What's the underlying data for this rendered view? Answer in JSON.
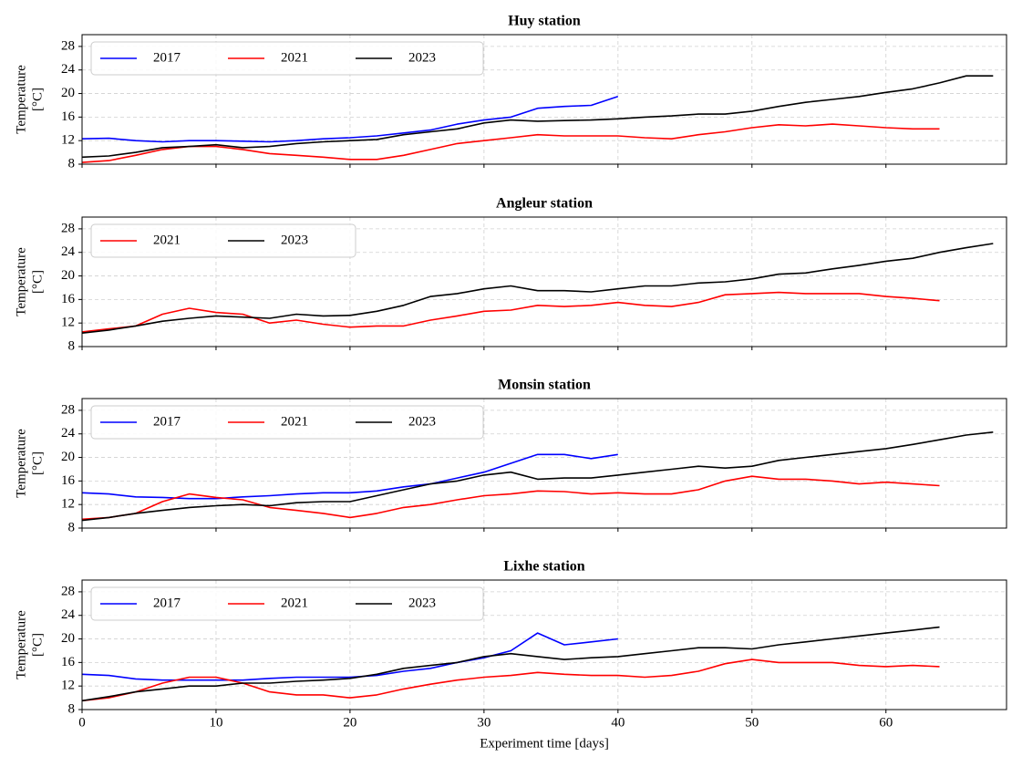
{
  "chart_data": [
    {
      "type": "line",
      "title": "Huy station",
      "ylabel": [
        "Temperature",
        "[°C]"
      ],
      "xlim": [
        0,
        69
      ],
      "ylim": [
        8,
        30
      ],
      "xticks": [
        0,
        10,
        20,
        30,
        40,
        50,
        60
      ],
      "yticks": [
        8,
        12,
        16,
        20,
        24,
        28
      ],
      "grid": true,
      "legend": "upper left",
      "x": [
        0,
        2,
        4,
        6,
        8,
        10,
        12,
        14,
        16,
        18,
        20,
        22,
        24,
        26,
        28,
        30,
        32,
        34,
        36,
        38,
        40,
        42,
        44,
        46,
        48,
        50,
        52,
        54,
        56,
        58,
        60,
        62,
        64,
        66,
        68
      ],
      "series": [
        {
          "name": "2017",
          "color": "#0000ff",
          "values": [
            12.3,
            12.4,
            12.0,
            11.8,
            12.0,
            12.0,
            11.9,
            11.8,
            12.0,
            12.3,
            12.5,
            12.8,
            13.3,
            13.8,
            14.8,
            15.5,
            16.0,
            17.5,
            17.8,
            18.0,
            19.5,
            null,
            null,
            null,
            null,
            null,
            null,
            null,
            null,
            null,
            null,
            null,
            null,
            null,
            null
          ]
        },
        {
          "name": "2021",
          "color": "#ff0000",
          "values": [
            8.3,
            8.6,
            9.5,
            10.5,
            11.0,
            11.0,
            10.5,
            9.8,
            9.5,
            9.2,
            8.8,
            8.8,
            9.5,
            10.5,
            11.5,
            12.0,
            12.5,
            13.0,
            12.8,
            12.8,
            12.8,
            12.5,
            12.3,
            13.0,
            13.5,
            14.2,
            14.7,
            14.5,
            14.8,
            14.5,
            14.2,
            14.0,
            14.0,
            null,
            null
          ]
        },
        {
          "name": "2023",
          "color": "#000000",
          "values": [
            9.2,
            9.4,
            10.0,
            10.8,
            11.0,
            11.3,
            10.8,
            11.0,
            11.5,
            11.8,
            12.0,
            12.2,
            13.0,
            13.5,
            14.0,
            15.0,
            15.5,
            15.3,
            15.4,
            15.5,
            15.7,
            16.0,
            16.2,
            16.5,
            16.5,
            17.0,
            17.8,
            18.5,
            19.0,
            19.5,
            20.2,
            20.8,
            21.8,
            23.0,
            23.0
          ]
        }
      ]
    },
    {
      "type": "line",
      "title": "Angleur station",
      "ylabel": [
        "Temperature",
        "[°C]"
      ],
      "xlim": [
        0,
        69
      ],
      "ylim": [
        8,
        30
      ],
      "xticks": [
        0,
        10,
        20,
        30,
        40,
        50,
        60
      ],
      "yticks": [
        8,
        12,
        16,
        20,
        24,
        28
      ],
      "grid": true,
      "legend": "upper left",
      "x": [
        0,
        2,
        4,
        6,
        8,
        10,
        12,
        14,
        16,
        18,
        20,
        22,
        24,
        26,
        28,
        30,
        32,
        34,
        36,
        38,
        40,
        42,
        44,
        46,
        48,
        50,
        52,
        54,
        56,
        58,
        60,
        62,
        64,
        66,
        68
      ],
      "series": [
        {
          "name": "2021",
          "color": "#ff0000",
          "values": [
            10.5,
            11.0,
            11.5,
            13.5,
            14.5,
            13.8,
            13.5,
            12.0,
            12.5,
            11.8,
            11.3,
            11.5,
            11.5,
            12.5,
            13.2,
            14.0,
            14.2,
            15.0,
            14.8,
            15.0,
            15.5,
            15.0,
            14.8,
            15.5,
            16.8,
            17.0,
            17.2,
            17.0,
            17.0,
            17.0,
            16.5,
            16.2,
            15.8,
            null,
            null
          ]
        },
        {
          "name": "2023",
          "color": "#000000",
          "values": [
            10.3,
            10.8,
            11.5,
            12.3,
            12.8,
            13.2,
            13.0,
            12.8,
            13.5,
            13.2,
            13.3,
            14.0,
            15.0,
            16.5,
            17.0,
            17.8,
            18.3,
            17.5,
            17.5,
            17.3,
            17.8,
            18.3,
            18.3,
            18.8,
            19.0,
            19.5,
            20.3,
            20.5,
            21.2,
            21.8,
            22.5,
            23.0,
            24.0,
            24.8,
            25.5
          ]
        }
      ]
    },
    {
      "type": "line",
      "title": "Monsin station",
      "ylabel": [
        "Temperature",
        "[°C]"
      ],
      "xlim": [
        0,
        69
      ],
      "ylim": [
        8,
        30
      ],
      "xticks": [
        0,
        10,
        20,
        30,
        40,
        50,
        60
      ],
      "yticks": [
        8,
        12,
        16,
        20,
        24,
        28
      ],
      "grid": true,
      "legend": "upper left",
      "x": [
        0,
        2,
        4,
        6,
        8,
        10,
        12,
        14,
        16,
        18,
        20,
        22,
        24,
        26,
        28,
        30,
        32,
        34,
        36,
        38,
        40,
        42,
        44,
        46,
        48,
        50,
        52,
        54,
        56,
        58,
        60,
        62,
        64,
        66,
        68
      ],
      "series": [
        {
          "name": "2017",
          "color": "#0000ff",
          "values": [
            14.0,
            13.8,
            13.3,
            13.2,
            13.0,
            13.0,
            13.3,
            13.5,
            13.8,
            14.0,
            14.0,
            14.3,
            15.0,
            15.5,
            16.5,
            17.5,
            19.0,
            20.5,
            20.5,
            19.8,
            20.5,
            null,
            null,
            null,
            null,
            null,
            null,
            null,
            null,
            null,
            null,
            null,
            null,
            null,
            null
          ]
        },
        {
          "name": "2021",
          "color": "#ff0000",
          "values": [
            9.5,
            9.8,
            10.5,
            12.5,
            13.8,
            13.2,
            12.8,
            11.5,
            11.0,
            10.5,
            9.8,
            10.5,
            11.5,
            12.0,
            12.8,
            13.5,
            13.8,
            14.3,
            14.2,
            13.8,
            14.0,
            13.8,
            13.8,
            14.5,
            16.0,
            16.8,
            16.3,
            16.3,
            16.0,
            15.5,
            15.8,
            15.5,
            15.2,
            null,
            null
          ]
        },
        {
          "name": "2023",
          "color": "#000000",
          "values": [
            9.3,
            9.8,
            10.5,
            11.0,
            11.5,
            11.8,
            12.0,
            11.8,
            12.3,
            12.5,
            12.5,
            13.5,
            14.5,
            15.5,
            16.0,
            17.0,
            17.5,
            16.3,
            16.5,
            16.5,
            17.0,
            17.5,
            18.0,
            18.5,
            18.2,
            18.5,
            19.5,
            20.0,
            20.5,
            21.0,
            21.5,
            22.2,
            23.0,
            23.8,
            24.3
          ]
        }
      ]
    },
    {
      "type": "line",
      "title": "Lixhe station",
      "ylabel": [
        "Temperature",
        "[°C]"
      ],
      "xlabel": "Experiment time [days]",
      "xlim": [
        0,
        69
      ],
      "ylim": [
        8,
        30
      ],
      "xticks": [
        0,
        10,
        20,
        30,
        40,
        50,
        60
      ],
      "yticks": [
        8,
        12,
        16,
        20,
        24,
        28
      ],
      "grid": true,
      "legend": "upper left",
      "x": [
        0,
        2,
        4,
        6,
        8,
        10,
        12,
        14,
        16,
        18,
        20,
        22,
        24,
        26,
        28,
        30,
        32,
        34,
        36,
        38,
        40,
        42,
        44,
        46,
        48,
        50,
        52,
        54,
        56,
        58,
        60,
        62,
        64,
        66,
        68
      ],
      "series": [
        {
          "name": "2017",
          "color": "#0000ff",
          "values": [
            14.0,
            13.8,
            13.2,
            13.0,
            13.0,
            13.0,
            13.0,
            13.3,
            13.5,
            13.5,
            13.5,
            13.8,
            14.5,
            15.0,
            16.0,
            16.8,
            18.0,
            21.0,
            19.0,
            19.5,
            20.0,
            null,
            null,
            null,
            null,
            null,
            null,
            null,
            null,
            null,
            null,
            null,
            null,
            null,
            null
          ]
        },
        {
          "name": "2021",
          "color": "#ff0000",
          "values": [
            9.5,
            10.0,
            11.0,
            12.5,
            13.5,
            13.5,
            12.5,
            11.0,
            10.5,
            10.5,
            10.0,
            10.5,
            11.5,
            12.3,
            13.0,
            13.5,
            13.8,
            14.3,
            14.0,
            13.8,
            13.8,
            13.5,
            13.8,
            14.5,
            15.8,
            16.5,
            16.0,
            16.0,
            16.0,
            15.5,
            15.3,
            15.5,
            15.3,
            null,
            null
          ]
        },
        {
          "name": "2023",
          "color": "#000000",
          "values": [
            9.5,
            10.2,
            11.0,
            11.5,
            12.0,
            12.0,
            12.5,
            12.5,
            12.8,
            13.0,
            13.3,
            14.0,
            15.0,
            15.5,
            16.0,
            17.0,
            17.5,
            17.0,
            16.5,
            16.8,
            17.0,
            17.5,
            18.0,
            18.5,
            18.5,
            18.3,
            19.0,
            19.5,
            20.0,
            20.5,
            21.0,
            21.5,
            22.0,
            null,
            null
          ]
        }
      ]
    }
  ]
}
